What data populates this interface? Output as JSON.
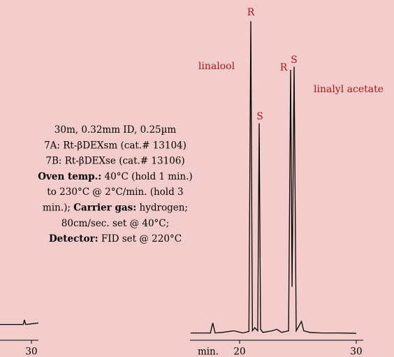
{
  "chart_data": [
    {
      "type": "line",
      "x_label": "min.",
      "xlim": [
        15.75,
        30.6
      ],
      "xticks": [
        20,
        30
      ],
      "ylim": [
        0,
        100
      ],
      "color": "#000000",
      "x": [
        15.8,
        17.5,
        17.7,
        17.9,
        18.5,
        19.5,
        20.3,
        20.8,
        20.96,
        21.1,
        21.3,
        21.55,
        21.68,
        21.8,
        22.0,
        22.8,
        23.2,
        23.6,
        24.2,
        24.37,
        24.5,
        24.67,
        24.85,
        25.3,
        25.5,
        26.0,
        27,
        28.5,
        30.0
      ],
      "values": [
        0.3,
        0.3,
        3.5,
        0.3,
        0.5,
        1,
        0.3,
        0.8,
        99.5,
        1,
        2,
        1,
        67,
        1.5,
        0.5,
        1,
        1.5,
        0.5,
        1,
        84,
        15,
        85,
        1,
        4,
        1,
        0.5,
        0.3,
        0.3,
        0.2
      ],
      "annotations": [
        "R",
        "linalool",
        "S",
        "R",
        "S",
        "linalyl acetate"
      ]
    },
    {
      "type": "line",
      "xlim": [
        27.3,
        30.6
      ],
      "xticks": [
        30
      ],
      "ylim": [
        0,
        100
      ],
      "color": "#000000",
      "x": [
        27.3,
        28.5,
        29.3,
        29.4,
        29.5,
        30.6
      ],
      "values": [
        3,
        3,
        3,
        4.5,
        3,
        3.5
      ]
    }
  ],
  "notes": [
    [
      {
        "text": "30m, 0.32mm ID, 0.25µm",
        "bold": false
      }
    ],
    [
      {
        "text": "7A: Rt-βDEXsm (cat.# 13104)",
        "bold": false
      }
    ],
    [
      {
        "text": "7B: Rt-βDEXse (cat.# 13106)",
        "bold": false
      }
    ],
    [
      {
        "text": "Oven temp.:",
        "bold": true
      },
      {
        "text": " 40°C (hold 1 min.)",
        "bold": false
      }
    ],
    [
      {
        "text": "to 230°C @ 2°C/min. (hold 3",
        "bold": false
      }
    ],
    [
      {
        "text": "min.); ",
        "bold": false
      },
      {
        "text": "Carrier gas:",
        "bold": true
      },
      {
        "text": " hydrogen;",
        "bold": false
      }
    ],
    [
      {
        "text": "80cm/sec. set @ 40°C;",
        "bold": false
      }
    ],
    [
      {
        "text": "Detector:",
        "bold": true
      },
      {
        "text": " FID set @ 220°C",
        "bold": false
      }
    ]
  ]
}
